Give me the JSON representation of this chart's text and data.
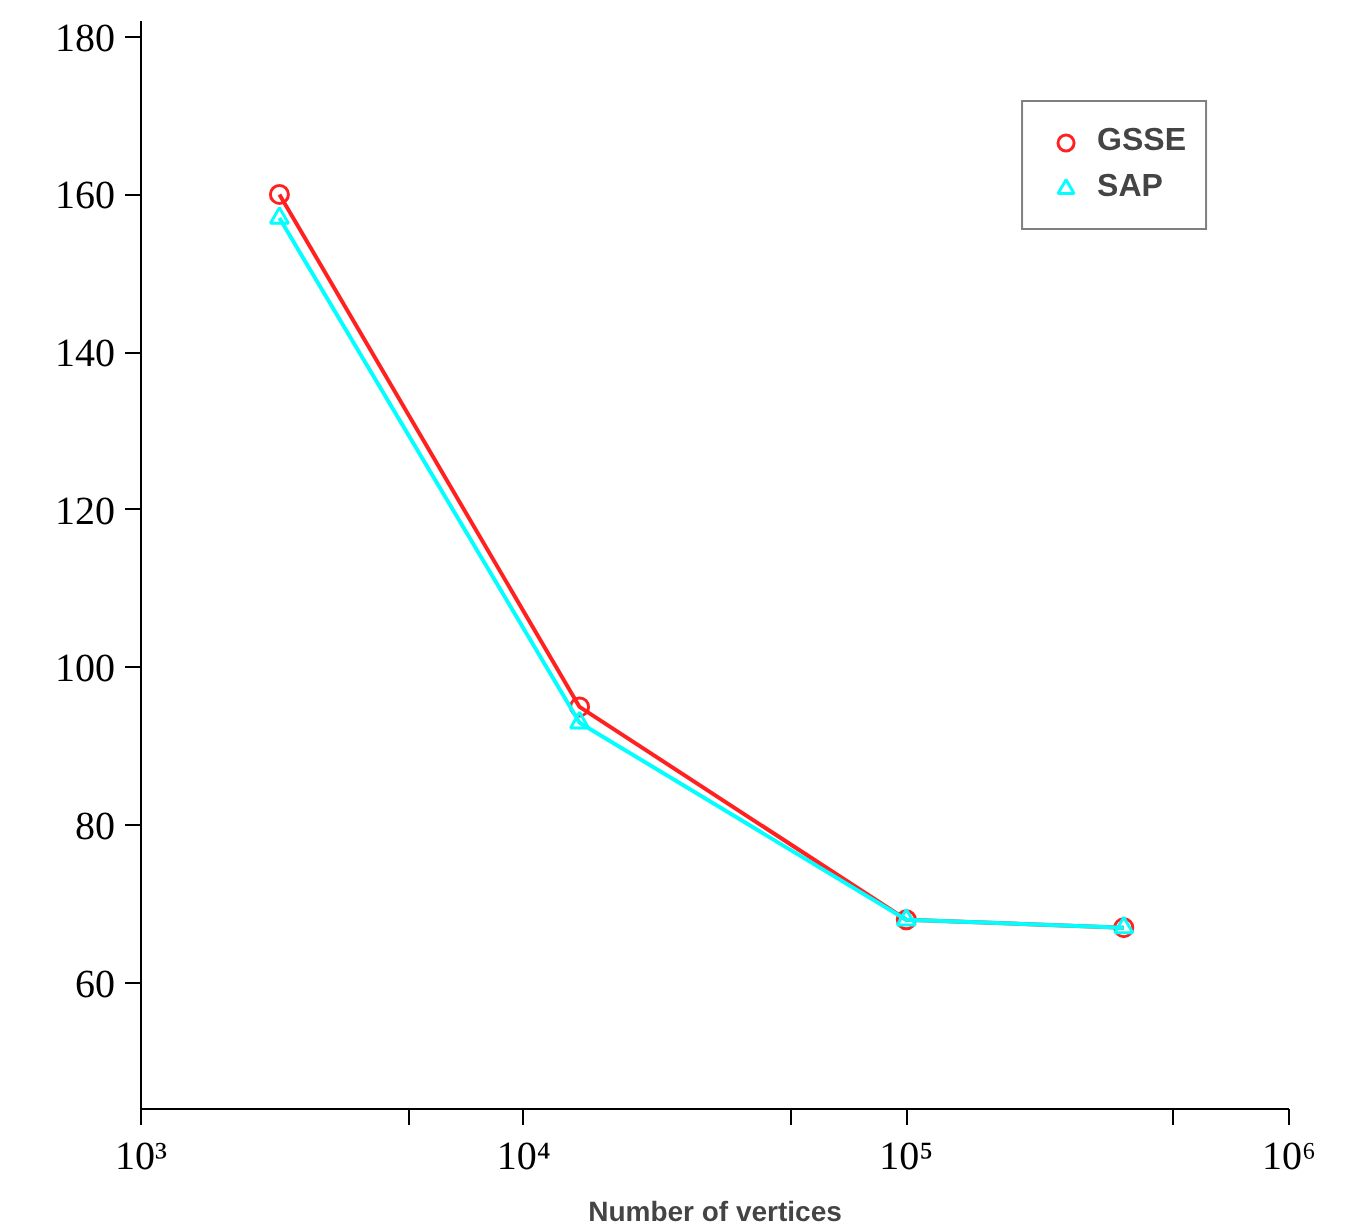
{
  "chart_data": {
    "type": "line",
    "xlabel": "Number of vertices",
    "x": [
      2300,
      14000,
      100000,
      370000
    ],
    "series": [
      {
        "name": "GSSE",
        "color": "#ff2020",
        "marker": "circle",
        "values": [
          160,
          95,
          68,
          67
        ]
      },
      {
        "name": "SAP",
        "color": "#00ffff",
        "marker": "triangle",
        "values": [
          157,
          93,
          68,
          67
        ]
      }
    ],
    "log": "x",
    "xlim": [
      1000,
      1000000
    ],
    "ylim": [
      44,
      182
    ],
    "xticks": [
      {
        "value": 1000,
        "label": "10³"
      },
      {
        "value": 5000,
        "label": null
      },
      {
        "value": 10000,
        "label": "10⁴"
      },
      {
        "value": 50000,
        "label": null
      },
      {
        "value": 100000,
        "label": "10⁵"
      },
      {
        "value": 500000,
        "label": null
      },
      {
        "value": 1000000,
        "label": "10⁶"
      }
    ],
    "yticks": [
      60,
      80,
      100,
      120,
      140,
      160,
      180
    ],
    "grid": false,
    "legend": "top right",
    "line_style": "solid"
  }
}
